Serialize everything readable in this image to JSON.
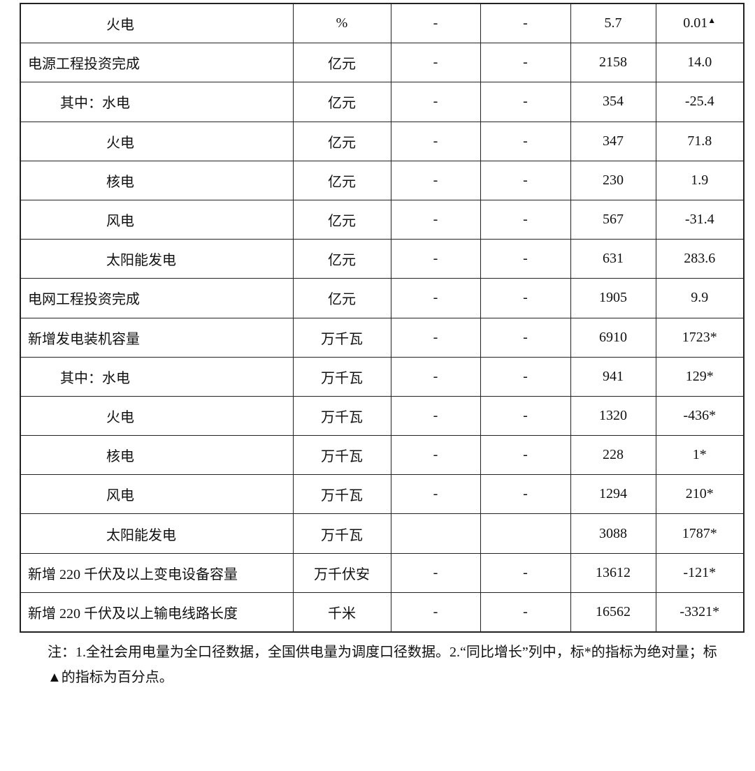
{
  "rows": [
    {
      "name": "火电",
      "level": 2,
      "unit": "%",
      "c1": "-",
      "c2": "-",
      "value": "5.7",
      "growth": "0.01",
      "mark": "▲"
    },
    {
      "name": "电源工程投资完成",
      "level": 0,
      "unit": "亿元",
      "c1": "-",
      "c2": "-",
      "value": "2158",
      "growth": "14.0",
      "mark": ""
    },
    {
      "name": "其中：水电",
      "level": 1,
      "unit": "亿元",
      "c1": "-",
      "c2": "-",
      "value": "354",
      "growth": "-25.4",
      "mark": ""
    },
    {
      "name": "火电",
      "level": 2,
      "unit": "亿元",
      "c1": "-",
      "c2": "-",
      "value": "347",
      "growth": "71.8",
      "mark": ""
    },
    {
      "name": "核电",
      "level": 2,
      "unit": "亿元",
      "c1": "-",
      "c2": "-",
      "value": "230",
      "growth": "1.9",
      "mark": ""
    },
    {
      "name": "风电",
      "level": 2,
      "unit": "亿元",
      "c1": "-",
      "c2": "-",
      "value": "567",
      "growth": "-31.4",
      "mark": ""
    },
    {
      "name": "太阳能发电",
      "level": 2,
      "unit": "亿元",
      "c1": "-",
      "c2": "-",
      "value": "631",
      "growth": "283.6",
      "mark": ""
    },
    {
      "name": "电网工程投资完成",
      "level": 0,
      "unit": "亿元",
      "c1": "-",
      "c2": "-",
      "value": "1905",
      "growth": "9.9",
      "mark": ""
    },
    {
      "name": "新增发电装机容量",
      "level": 0,
      "unit": "万千瓦",
      "c1": "-",
      "c2": "-",
      "value": "6910",
      "growth": "1723*",
      "mark": ""
    },
    {
      "name": "其中：水电",
      "level": 1,
      "unit": "万千瓦",
      "c1": "-",
      "c2": "-",
      "value": "941",
      "growth": "129*",
      "mark": ""
    },
    {
      "name": "火电",
      "level": 2,
      "unit": "万千瓦",
      "c1": "-",
      "c2": "-",
      "value": "1320",
      "growth": "-436*",
      "mark": ""
    },
    {
      "name": "核电",
      "level": 2,
      "unit": "万千瓦",
      "c1": "-",
      "c2": "-",
      "value": "228",
      "growth": "1*",
      "mark": ""
    },
    {
      "name": "风电",
      "level": 2,
      "unit": "万千瓦",
      "c1": "-",
      "c2": "-",
      "value": "1294",
      "growth": "210*",
      "mark": ""
    },
    {
      "name": "太阳能发电",
      "level": 2,
      "unit": "万千瓦",
      "c1": "",
      "c2": "",
      "value": "3088",
      "growth": "1787*",
      "mark": ""
    },
    {
      "name": "新增 220 千伏及以上变电设备容量",
      "level": 0,
      "unit": "万千伏安",
      "c1": "-",
      "c2": "-",
      "value": "13612",
      "growth": "-121*",
      "mark": ""
    },
    {
      "name": "新增 220 千伏及以上输电线路长度",
      "level": 0,
      "unit": "千米",
      "c1": "-",
      "c2": "-",
      "value": "16562",
      "growth": "-3321*",
      "mark": ""
    }
  ],
  "note": "注：1.全社会用电量为全口径数据，全国供电量为调度口径数据。2.“同比增长”列中，标*的指标为绝对量；标▲的指标为百分点。"
}
